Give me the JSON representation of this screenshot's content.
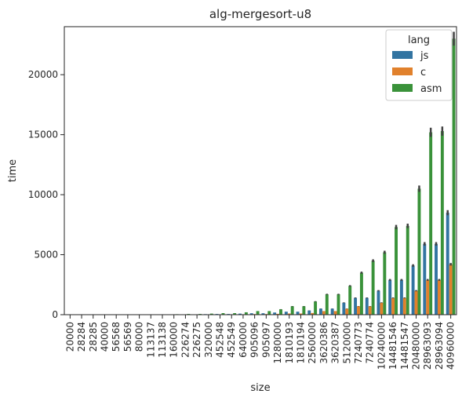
{
  "chart_data": {
    "type": "bar",
    "title": "alg-mergesort-u8",
    "xlabel": "size",
    "ylabel": "time",
    "ylim": [
      0,
      24000
    ],
    "yticks": [
      0,
      5000,
      10000,
      15000,
      20000
    ],
    "grid": false,
    "legend": {
      "title": "lang",
      "position": "top-right"
    },
    "categories": [
      "20000",
      "28284",
      "28285",
      "40000",
      "56568",
      "56569",
      "80000",
      "113137",
      "113138",
      "160000",
      "226274",
      "226275",
      "320000",
      "452548",
      "452549",
      "640000",
      "905096",
      "905097",
      "1280000",
      "1810193",
      "1810194",
      "2560000",
      "3620386",
      "3620387",
      "5120000",
      "7240773",
      "7240774",
      "10240000",
      "14481546",
      "14481547",
      "20480000",
      "28963093",
      "28963094",
      "40960000"
    ],
    "series": [
      {
        "name": "js",
        "color": "#3274a1",
        "values": [
          5,
          5,
          5,
          5,
          8,
          8,
          10,
          15,
          15,
          20,
          30,
          30,
          45,
          60,
          60,
          90,
          120,
          120,
          180,
          250,
          250,
          350,
          500,
          500,
          1000,
          1400,
          1400,
          2000,
          2900,
          2900,
          4100,
          5900,
          5900,
          8500
        ]
      },
      {
        "name": "c",
        "color": "#e1812c",
        "values": [
          2,
          2,
          2,
          2,
          3,
          3,
          4,
          6,
          6,
          8,
          12,
          12,
          18,
          25,
          25,
          35,
          50,
          50,
          70,
          100,
          100,
          140,
          300,
          300,
          500,
          700,
          700,
          1000,
          1400,
          1400,
          2000,
          2900,
          2900,
          4200
        ]
      },
      {
        "name": "asm",
        "color": "#3a923a",
        "values": [
          8,
          8,
          8,
          8,
          12,
          12,
          18,
          25,
          25,
          40,
          60,
          60,
          90,
          130,
          130,
          200,
          300,
          300,
          450,
          700,
          700,
          1100,
          1700,
          1700,
          2400,
          3500,
          4500,
          5200,
          7300,
          7400,
          10500,
          15200,
          15300,
          23000
        ]
      }
    ],
    "error_color": "#424242"
  }
}
